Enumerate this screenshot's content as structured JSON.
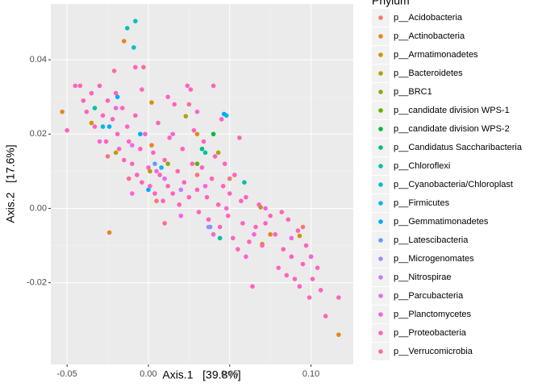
{
  "chart_data": {
    "type": "scatter",
    "xlabel": "Axis.1   [39.8%]",
    "ylabel": "Axis.2   [17.6%]",
    "legend_title": "Phylum",
    "legend": "right",
    "grid": true,
    "xlim": [
      -0.06,
      0.126
    ],
    "ylim": [
      -0.042,
      0.055
    ],
    "xticks": [
      -0.05,
      {
        "value": 0,
        "label": "0.00"
      },
      0.05,
      {
        "value": 0.1,
        "label": "0.10"
      }
    ],
    "yticks": [
      -0.02,
      {
        "value": 0,
        "label": "0.00"
      },
      0.02,
      0.04
    ],
    "series": [
      {
        "name": "p__Acidobacteria",
        "color": "#F8766D",
        "x": [
          -0.025,
          0.005,
          0.03,
          0.05,
          0.095
        ],
        "y": [
          0.014,
          0.002,
          0.009,
          0.008,
          -0.005
        ]
      },
      {
        "name": "p__Actinobacteria",
        "color": "#E7851E",
        "x": [
          -0.053,
          -0.024,
          0.117,
          -0.015,
          0.002,
          0.03,
          0.075
        ],
        "y": [
          0.026,
          -0.0065,
          -0.034,
          0.045,
          0.017,
          0.02,
          -0.007
        ]
      },
      {
        "name": "p__Armatimonadetes",
        "color": "#D09400",
        "x": [
          0.002,
          0.07,
          0.093,
          -0.035
        ],
        "y": [
          0.0285,
          -0.0096,
          -0.0074,
          0.023
        ]
      },
      {
        "name": "p__Bacteroidetes",
        "color": "#B2A100",
        "x": [
          0.069,
          0.023,
          0.001,
          0.043,
          -0.02
        ],
        "y": [
          0.0003,
          0.0248,
          0.01,
          0.015,
          0.015
        ]
      },
      {
        "name": "p__BRC1",
        "color": "#8EAB00",
        "x": [
          0.012
        ],
        "y": [
          0.012
        ]
      },
      {
        "name": "p__candidate division WPS-1",
        "color": "#5BB300",
        "x": [
          0.03
        ],
        "y": [
          0.012
        ]
      },
      {
        "name": "p__candidate division WPS-2",
        "color": "#00BA38",
        "x": [
          0.04
        ],
        "y": [
          0.02
        ]
      },
      {
        "name": "p__Candidatus Saccharibacteria",
        "color": "#00BF7D",
        "x": [
          0.033
        ],
        "y": [
          0.016
        ]
      },
      {
        "name": "p__Chloroflexi",
        "color": "#00C1A3",
        "x": [
          0.044,
          0.059,
          -0.033,
          0.035
        ],
        "y": [
          -0.008,
          0.007,
          0.027,
          0.015
        ]
      },
      {
        "name": "p__Cyanobacteria/Chloroplast",
        "color": "#00BFC4",
        "x": [
          -0.013,
          -0.008,
          -0.009,
          0.1
        ],
        "y": [
          0.0485,
          0.0504,
          0.0433,
          -0.013
        ]
      },
      {
        "name": "p__Firmicutes",
        "color": "#00B8E5",
        "x": [
          0.048,
          0.008,
          -0.028
        ],
        "y": [
          0.025,
          0.011,
          0.022
        ]
      },
      {
        "name": "p__Gemmatimonadetes",
        "color": "#00A9FF",
        "x": [
          -0.024,
          -0.019,
          0.0465,
          0,
          -0.005
        ],
        "y": [
          0.022,
          0.03,
          0.0254,
          0.005,
          0.02
        ]
      },
      {
        "name": "p__Latescibacteria",
        "color": "#619CFF",
        "x": [
          0.038,
          0.004
        ],
        "y": [
          -0.005,
          0.012
        ]
      },
      {
        "name": "p__Microgenomates",
        "color": "#9590FF",
        "x": [
          0.037
        ],
        "y": [
          -0.005
        ]
      },
      {
        "name": "p__Nitrospirae",
        "color": "#C77CFF",
        "x": [
          0.02
        ],
        "y": [
          0.005
        ]
      },
      {
        "name": "p__Parcubacteria",
        "color": "#E76BF3",
        "x": [
          0.01,
          -0.01
        ],
        "y": [
          0.008,
          0.017
        ]
      },
      {
        "name": "p__Planctomycetes",
        "color": "#FA62DB",
        "x": [
          -0.03,
          -0.01,
          0.005,
          0.02,
          0.035,
          0.048,
          0.06,
          0.072,
          0.088,
          -0.02,
          0.015,
          0.04,
          0.065,
          0.1,
          0.03
        ],
        "y": [
          0.018,
          0.004,
          0.01,
          -0.002,
          0.006,
          0,
          -0.013,
          0,
          -0.008,
          0.027,
          0.02,
          -0.007,
          -0.007,
          -0.013,
          0.026
        ]
      },
      {
        "name": "p__Proteobacteria",
        "color": "#FF62BC",
        "x": [
          -0.045,
          -0.04,
          -0.038,
          -0.035,
          -0.033,
          -0.03,
          -0.028,
          -0.026,
          -0.025,
          -0.022,
          -0.02,
          -0.019,
          -0.018,
          -0.016,
          -0.015,
          -0.013,
          -0.012,
          -0.01,
          -0.008,
          -0.007,
          -0.005,
          -0.004,
          -0.002,
          0,
          0.001,
          0.003,
          0.004,
          0.006,
          0.007,
          0.009,
          0.01,
          0.012,
          0.013,
          0.015,
          0.016,
          0.018,
          0.019,
          0.021,
          0.022,
          0.024,
          0.025,
          0.027,
          0.028,
          0.03,
          0.031,
          0.033,
          0.034,
          0.036,
          0.037,
          0.039,
          0.04,
          0.041,
          0.043,
          0.044,
          0.046,
          0.047,
          0.049,
          0.05,
          0.052,
          0.053,
          0.055,
          0.057,
          0.058,
          0.06,
          0.062,
          0.064,
          0.066,
          0.068,
          0.07,
          0.072,
          0.075,
          0.078,
          0.08,
          0.082,
          0.083,
          0.085,
          0.086,
          0.088,
          0.09,
          0.092,
          0.093,
          0.095,
          0.097,
          0.099,
          0.101,
          0.104,
          0.106,
          0.109,
          0.117,
          -0.05,
          -0.042,
          -0.008,
          -0.004,
          0.026,
          0.012,
          0.045,
          0.056
        ],
        "y": [
          0.033,
          0.029,
          0.026,
          0.031,
          0.022,
          0.033,
          0.025,
          0.018,
          0.029,
          0.024,
          0.031,
          0.02,
          0.016,
          0.027,
          0.013,
          0.022,
          0.018,
          0.012,
          0.025,
          0.009,
          0.016,
          0.007,
          0.02,
          0.011,
          0.006,
          0.015,
          0.004,
          0.023,
          0.009,
          0.002,
          0.013,
          0.006,
          0.019,
          0.004,
          0.028,
          0.01,
          0.001,
          0.016,
          0.007,
          0.033,
          0.003,
          0.012,
          0.021,
          0.005,
          -0.001,
          0.011,
          0.018,
          0.003,
          -0.003,
          0.008,
          0.033,
          0.014,
          0.001,
          -0.005,
          0.006,
          0.012,
          -0.002,
          0.004,
          -0.008,
          0.009,
          -0.011,
          0.002,
          -0.004,
          0.003,
          -0.009,
          -0.021,
          -0.005,
          0.001,
          -0.01,
          -0.004,
          -0.002,
          -0.007,
          -0.016,
          -0.001,
          -0.011,
          -0.018,
          -0.003,
          -0.013,
          -0.019,
          -0.006,
          -0.021,
          -0.015,
          -0.01,
          -0.024,
          -0.019,
          -0.016,
          -0.022,
          -0.029,
          -0.024,
          0.021,
          0.033,
          0.038,
          0.032,
          0.032,
          0.03,
          0.024,
          0.019
        ]
      },
      {
        "name": "p__Verrucomicrobia",
        "color": "#FF6C91",
        "x": [
          -0.021,
          -0.003,
          -0.012,
          0.025,
          0.01
        ],
        "y": [
          0.037,
          0.038,
          0.008,
          0.028,
          -0.004
        ]
      }
    ]
  }
}
